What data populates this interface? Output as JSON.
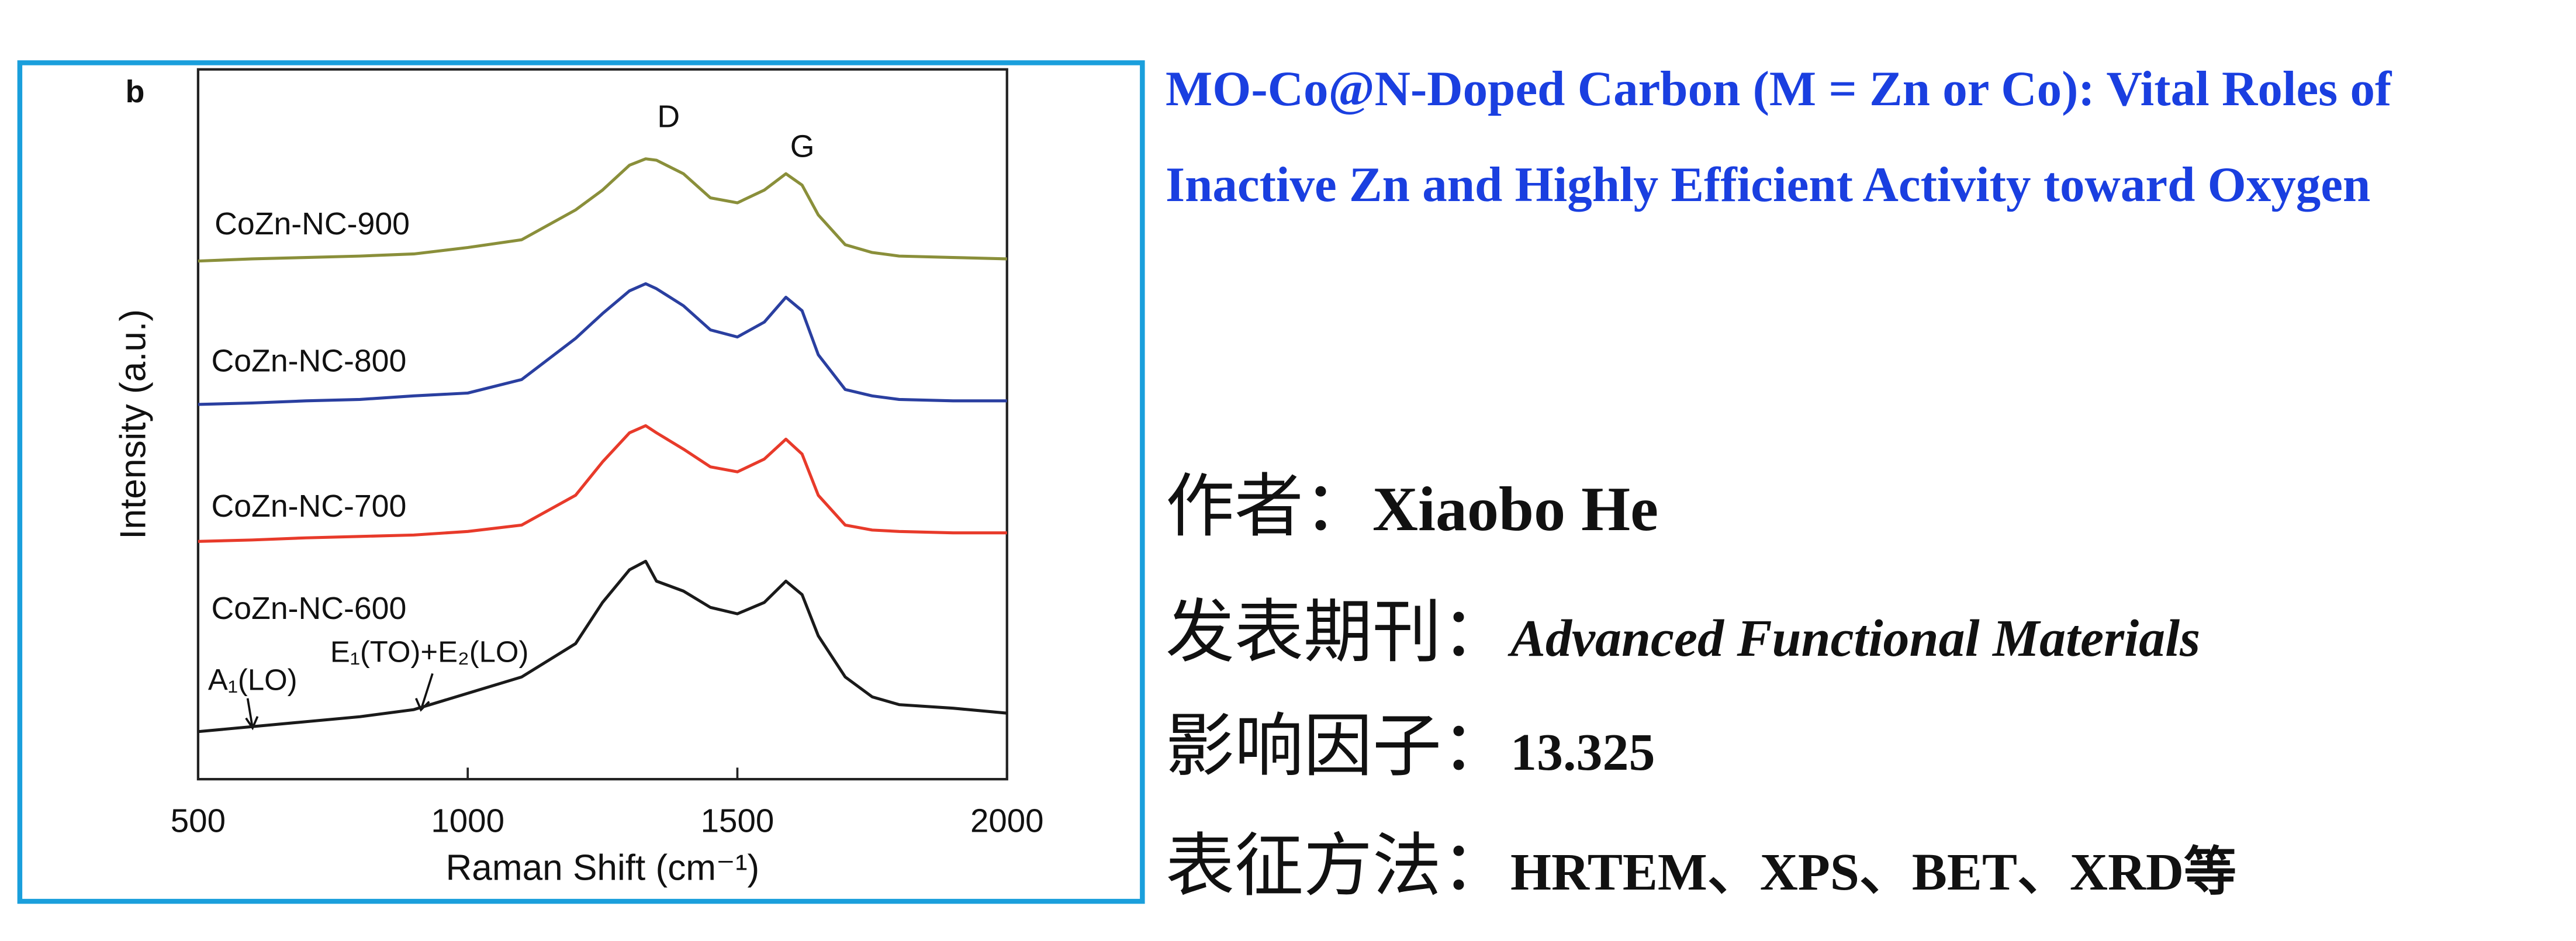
{
  "chart_data": {
    "type": "line",
    "panel_label": "b",
    "xlabel": "Raman Shift (cm⁻¹)",
    "ylabel": "Intensity (a.u.)",
    "x": [
      500,
      600,
      700,
      800,
      900,
      1000,
      1100,
      1200,
      1250,
      1300,
      1330,
      1350,
      1400,
      1450,
      1500,
      1550,
      1590,
      1620,
      1650,
      1700,
      1750,
      1800,
      1900,
      2000
    ],
    "xlim": [
      500,
      2000
    ],
    "xticks": [
      500,
      1000,
      1500,
      2000
    ],
    "ylim": [
      0,
      100
    ],
    "annotations": [
      "D",
      "G",
      "A₁(LO)",
      "E₁(TO)+E₂(LO)"
    ],
    "series": [
      {
        "name": "CoZn-NC-900",
        "color": "#8a8f3a",
        "values": [
          73.0,
          73.3,
          73.5,
          73.7,
          74.0,
          74.9,
          76.0,
          80.2,
          83.0,
          86.5,
          87.4,
          87.2,
          85.3,
          81.9,
          81.2,
          83.0,
          85.3,
          83.7,
          79.5,
          75.3,
          74.2,
          73.7,
          73.5,
          73.3
        ]
      },
      {
        "name": "CoZn-NC-800",
        "color": "#2a3fa0",
        "values": [
          52.8,
          53.0,
          53.3,
          53.5,
          54.0,
          54.4,
          56.3,
          62.1,
          65.6,
          68.8,
          69.8,
          69.1,
          66.7,
          63.3,
          62.3,
          64.4,
          67.9,
          66.0,
          59.8,
          54.9,
          54.0,
          53.5,
          53.3,
          53.3
        ]
      },
      {
        "name": "CoZn-NC-700",
        "color": "#e83a2a",
        "values": [
          33.5,
          33.7,
          34.0,
          34.2,
          34.4,
          34.9,
          35.8,
          40.0,
          44.7,
          48.8,
          49.8,
          48.8,
          46.5,
          44.0,
          43.3,
          45.1,
          47.9,
          45.8,
          40.0,
          35.8,
          35.1,
          34.9,
          34.7,
          34.7
        ]
      },
      {
        "name": "CoZn-NC-600",
        "color": "#1a1a1a",
        "values": [
          6.7,
          7.4,
          8.1,
          8.8,
          9.8,
          12.1,
          14.4,
          19.1,
          24.9,
          29.5,
          30.7,
          27.9,
          26.5,
          24.2,
          23.3,
          24.9,
          27.9,
          26.0,
          20.2,
          14.4,
          11.6,
          10.5,
          10.0,
          9.3
        ]
      }
    ]
  },
  "info": {
    "title": "MO-Co@N-Doped Carbon (M = Zn or Co): Vital Roles of Inactive Zn and Highly Efficient Activity toward Oxygen",
    "fields": [
      {
        "label": "作者：",
        "value": "Xiaobo He"
      },
      {
        "label": "发表期刊：",
        "value": "Advanced Functional Materials"
      },
      {
        "label": "影响因子：",
        "value": 13.325
      },
      {
        "label": "表征方法：",
        "value": "HRTEM、XPS、BET、XRD等"
      }
    ]
  }
}
